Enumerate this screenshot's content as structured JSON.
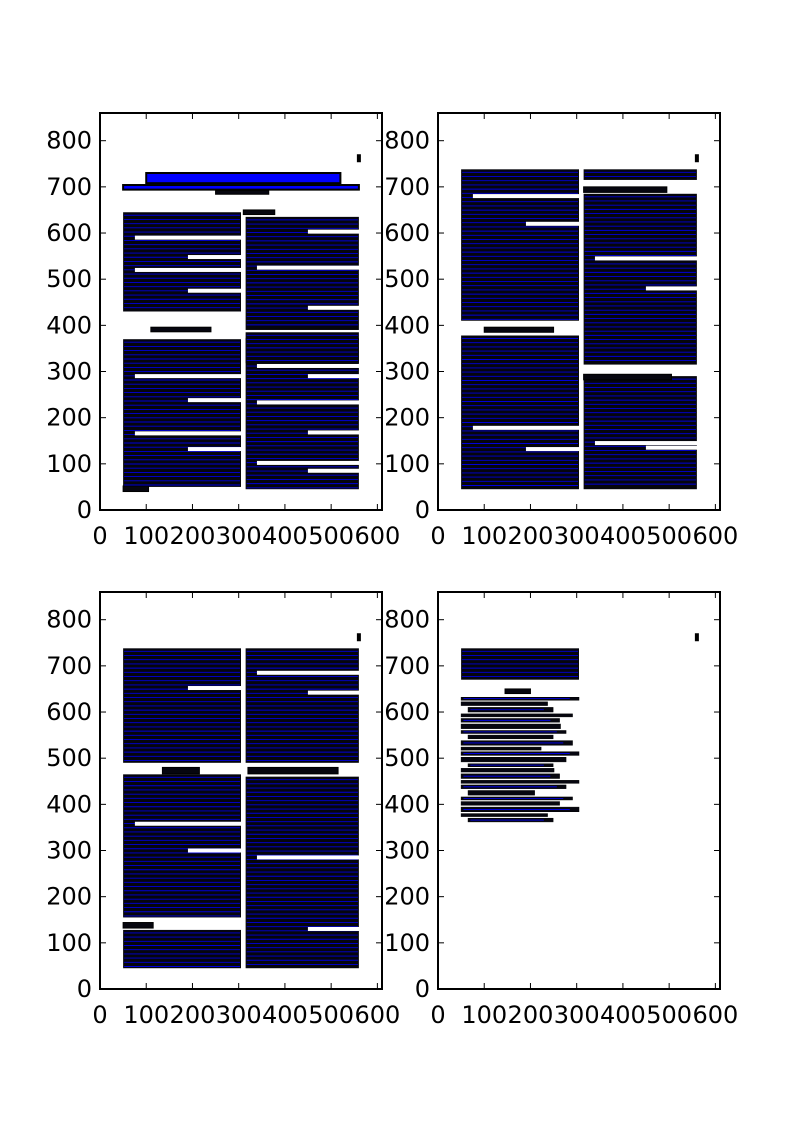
{
  "chart_data": [
    {
      "type": "bar",
      "panel": "top-left",
      "title": "",
      "xlabel": "",
      "ylabel": "",
      "xlim": [
        0,
        610
      ],
      "ylim": [
        0,
        860
      ],
      "xticks": [
        0,
        100,
        200,
        300,
        400,
        500,
        600
      ],
      "yticks": [
        0,
        100,
        200,
        300,
        400,
        500,
        600,
        700,
        800
      ],
      "bar_color": "#0000ff",
      "edge_color": "#000000",
      "blocks": [
        {
          "kind": "banner",
          "x0": 100,
          "x1": 520,
          "y0": 708,
          "y1": 730
        },
        {
          "kind": "banner",
          "x0": 50,
          "x1": 560,
          "y0": 694,
          "y1": 704
        },
        {
          "kind": "bar",
          "x0": 250,
          "x1": 365,
          "y0": 684,
          "y1": 692
        },
        {
          "kind": "bar",
          "x0": 310,
          "x1": 378,
          "y0": 640,
          "y1": 650
        },
        {
          "kind": "bar",
          "x0": 110,
          "x1": 240,
          "y0": 386,
          "y1": 396
        },
        {
          "kind": "block",
          "x0": 50,
          "x1": 305,
          "y0": 430,
          "y1": 645,
          "gaps": [
            475,
            520,
            548,
            590
          ]
        },
        {
          "kind": "block",
          "x0": 315,
          "x1": 560,
          "y0": 390,
          "y1": 635,
          "gaps": [
            438,
            525,
            603
          ]
        },
        {
          "kind": "block",
          "x0": 50,
          "x1": 305,
          "y0": 50,
          "y1": 370,
          "gaps": [
            132,
            166,
            238,
            290
          ]
        },
        {
          "kind": "block",
          "x0": 315,
          "x1": 560,
          "y0": 45,
          "y1": 373,
          "gaps": [
            85,
            102,
            168,
            233,
            290,
            312
          ]
        },
        {
          "kind": "block",
          "x0": 315,
          "x1": 560,
          "y0": 318,
          "y1": 385,
          "gaps": []
        },
        {
          "kind": "bar",
          "x0": 50,
          "x1": 105,
          "y0": 40,
          "y1": 52
        }
      ],
      "markers": [
        {
          "x": 560,
          "y": 762
        }
      ]
    },
    {
      "type": "bar",
      "panel": "top-right",
      "title": "",
      "xlabel": "",
      "ylabel": "",
      "xlim": [
        0,
        610
      ],
      "ylim": [
        0,
        860
      ],
      "xticks": [
        0,
        100,
        200,
        300,
        400,
        500,
        600
      ],
      "yticks": [
        0,
        100,
        200,
        300,
        400,
        500,
        600,
        700,
        800
      ],
      "bar_color": "#0000ff",
      "edge_color": "#000000",
      "blocks": [
        {
          "kind": "block",
          "x0": 50,
          "x1": 305,
          "y0": 410,
          "y1": 738,
          "gaps": [
            620,
            680
          ]
        },
        {
          "kind": "block",
          "x0": 315,
          "x1": 560,
          "y0": 715,
          "y1": 738,
          "gaps": []
        },
        {
          "kind": "bar",
          "x0": 315,
          "x1": 495,
          "y0": 688,
          "y1": 700
        },
        {
          "kind": "block",
          "x0": 315,
          "x1": 560,
          "y0": 315,
          "y1": 685,
          "gaps": [
            480,
            545
          ]
        },
        {
          "kind": "bar",
          "x0": 100,
          "x1": 250,
          "y0": 385,
          "y1": 396
        },
        {
          "kind": "block",
          "x0": 50,
          "x1": 305,
          "y0": 45,
          "y1": 378,
          "gaps": [
            132,
            178
          ]
        },
        {
          "kind": "block",
          "x0": 315,
          "x1": 560,
          "y0": 45,
          "y1": 290,
          "gaps": [
            135,
            145
          ]
        },
        {
          "kind": "bar",
          "x0": 315,
          "x1": 505,
          "y0": 282,
          "y1": 294
        }
      ],
      "markers": [
        {
          "x": 560,
          "y": 762
        }
      ]
    },
    {
      "type": "bar",
      "panel": "bottom-left",
      "title": "",
      "xlabel": "",
      "ylabel": "",
      "xlim": [
        0,
        610
      ],
      "ylim": [
        0,
        860
      ],
      "xticks": [
        0,
        100,
        200,
        300,
        400,
        500,
        600
      ],
      "yticks": [
        0,
        100,
        200,
        300,
        400,
        500,
        600,
        700,
        800
      ],
      "bar_color": "#0000ff",
      "edge_color": "#000000",
      "blocks": [
        {
          "kind": "block",
          "x0": 50,
          "x1": 305,
          "y0": 490,
          "y1": 738,
          "gaps": [
            652
          ]
        },
        {
          "kind": "block",
          "x0": 315,
          "x1": 560,
          "y0": 490,
          "y1": 738,
          "gaps": [
            642,
            685
          ]
        },
        {
          "kind": "bar",
          "x0": 135,
          "x1": 215,
          "y0": 466,
          "y1": 480
        },
        {
          "kind": "bar",
          "x0": 320,
          "x1": 515,
          "y0": 466,
          "y1": 480
        },
        {
          "kind": "block",
          "x0": 50,
          "x1": 305,
          "y0": 155,
          "y1": 465,
          "gaps": [
            300,
            358
          ]
        },
        {
          "kind": "block",
          "x0": 315,
          "x1": 560,
          "y0": 45,
          "y1": 460,
          "gaps": [
            130,
            285
          ]
        },
        {
          "kind": "bar",
          "x0": 50,
          "x1": 115,
          "y0": 132,
          "y1": 144
        },
        {
          "kind": "block",
          "x0": 50,
          "x1": 305,
          "y0": 45,
          "y1": 128,
          "gaps": []
        }
      ],
      "markers": [
        {
          "x": 560,
          "y": 762
        }
      ]
    },
    {
      "type": "bar",
      "panel": "bottom-right",
      "title": "",
      "xlabel": "",
      "ylabel": "",
      "xlim": [
        0,
        610
      ],
      "ylim": [
        0,
        860
      ],
      "xticks": [
        0,
        100,
        200,
        300,
        400,
        500,
        600
      ],
      "yticks": [
        0,
        100,
        200,
        300,
        400,
        500,
        600,
        700,
        800
      ],
      "bar_color": "#0000ff",
      "edge_color": "#000000",
      "blocks": [
        {
          "kind": "block",
          "x0": 50,
          "x1": 305,
          "y0": 670,
          "y1": 738,
          "gaps": []
        },
        {
          "kind": "bar",
          "x0": 145,
          "x1": 200,
          "y0": 640,
          "y1": 650
        },
        {
          "kind": "ragged",
          "x0": 50,
          "x1": 305,
          "y0": 362,
          "y1": 632
        }
      ],
      "markers": [
        {
          "x": 560,
          "y": 762
        }
      ]
    }
  ]
}
